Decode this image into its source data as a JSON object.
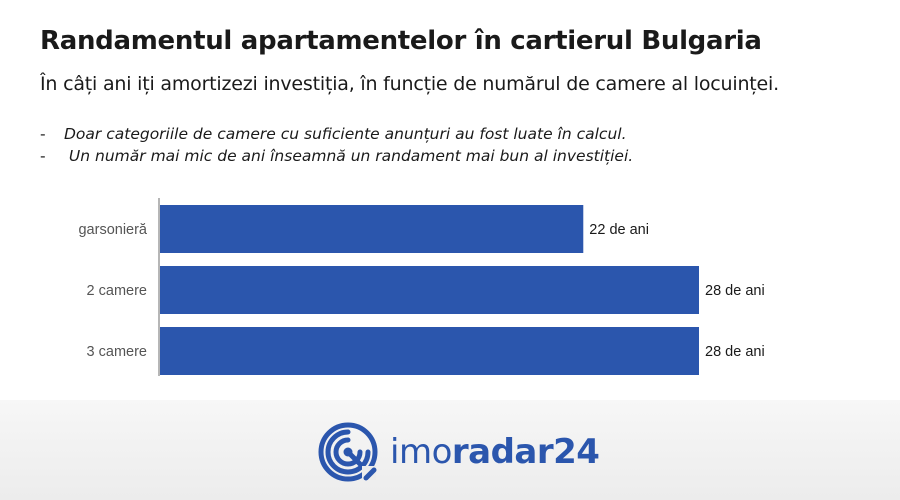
{
  "header": {
    "title": "Randamentul apartamentelor în cartierul Bulgaria",
    "subtitle": "În câți ani iți amortizezi investiția, în funcție de numărul de camere al locuinței."
  },
  "notes": [
    {
      "dash": "-",
      "text": "Doar categoriile de camere cu suficiente anunțuri au fost luate în calcul."
    },
    {
      "dash": "-",
      "text": " Un număr mai mic de ani înseamnă un randament mai bun al investiției."
    }
  ],
  "chart_data": {
    "type": "bar",
    "orientation": "horizontal",
    "categories": [
      "garsonieră",
      "2 camere",
      "3 camere"
    ],
    "values": [
      22,
      28,
      28
    ],
    "value_labels": [
      "22 de ani",
      "28 de ani",
      "28 de ani"
    ],
    "xlim": [
      0,
      28
    ],
    "grid": false,
    "bar_color": "#2b56ad"
  },
  "brand": {
    "logo_icon": "imoradar-target-icon",
    "name_light": "imo",
    "name_bold": "radar24",
    "color": "#2b56ad"
  }
}
